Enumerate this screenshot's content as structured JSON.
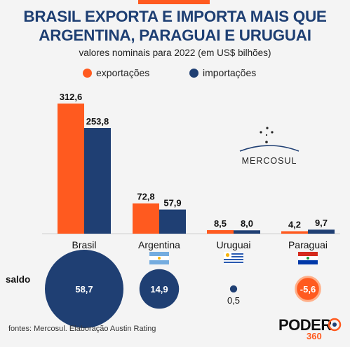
{
  "header": {
    "title_line1": "BRASIL EXPORTA E IMPORTA MAIS QUE",
    "title_line2": "ARGENTINA, PARAGUAI E URUGUAI",
    "subtitle": "valores nominais para 2022 (em US$ bilhões)"
  },
  "legend": [
    {
      "label": "exportações",
      "color": "#ff5a1f"
    },
    {
      "label": "importações",
      "color": "#1f3f73"
    }
  ],
  "chart_data": {
    "type": "bar",
    "title": "BRASIL EXPORTA E IMPORTA MAIS QUE ARGENTINA, PARAGUAI E URUGUAI",
    "subtitle": "valores nominais para 2022 (em US$ bilhões)",
    "categories": [
      "Brasil",
      "Argentina",
      "Uruguai",
      "Paraguai"
    ],
    "series": [
      {
        "name": "exportações",
        "color": "#ff5a1f",
        "values": [
          312.6,
          72.8,
          8.5,
          4.2
        ],
        "labels": [
          "312,6",
          "72,8",
          "8,5",
          "4,2"
        ]
      },
      {
        "name": "importações",
        "color": "#1f3f73",
        "values": [
          253.8,
          57.9,
          8.0,
          9.7
        ],
        "labels": [
          "253,8",
          "57,9",
          "8,0",
          "9,7"
        ]
      }
    ],
    "saldo": {
      "label": "saldo",
      "values": [
        58.7,
        14.9,
        0.5,
        -5.6
      ],
      "labels": [
        "58,7",
        "14,9",
        "0,5",
        "-5,6"
      ],
      "positive_color": "#1f3f73",
      "negative_color": "#ff5a1f"
    },
    "flags": [
      "brazil-flag",
      "argentina-flag",
      "uruguay-flag",
      "paraguay-flag"
    ],
    "ylim": [
      0,
      320
    ],
    "grid": false,
    "legend_position": "top-left"
  },
  "mercosul_logo": {
    "text": "MERCOSUL",
    "icon": "southern-cross-stars"
  },
  "footer": {
    "source": "fontes: Mercosul. Elaboração Austin Rating",
    "logo_word": "PODER",
    "logo_number": "360"
  },
  "colors": {
    "title": "#1e3f73",
    "background": "#f4f4f4",
    "exports": "#ff5a1f",
    "imports": "#1f3f73"
  }
}
